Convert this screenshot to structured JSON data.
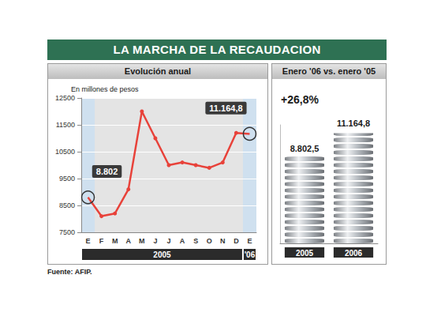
{
  "title": "LA MARCHA DE LA RECAUDACION",
  "source": "Fuente: AFIP.",
  "chart_data": [
    {
      "type": "line",
      "title": "Evolución anual",
      "ylabel": "En millones de pesos",
      "categories": [
        "E",
        "F",
        "M",
        "A",
        "M",
        "J",
        "J",
        "A",
        "S",
        "O",
        "N",
        "D",
        "E"
      ],
      "x_groups": [
        "2005",
        "2005",
        "2005",
        "2005",
        "2005",
        "2005",
        "2005",
        "2005",
        "2005",
        "2005",
        "2005",
        "2005",
        "'06"
      ],
      "values": [
        8802,
        8100,
        8200,
        9100,
        12000,
        11000,
        10000,
        10100,
        10000,
        9900,
        10100,
        11200,
        11164.8
      ],
      "value_labels": [
        "8.802",
        null,
        null,
        null,
        null,
        null,
        null,
        null,
        null,
        null,
        null,
        null,
        "11.164,8"
      ],
      "color": "#e8423a",
      "marker": "circle",
      "ylim": [
        7500,
        12500
      ],
      "yticks": [
        7500,
        8500,
        9500,
        10500,
        11500,
        12500
      ],
      "grid": true
    },
    {
      "type": "pictorialBar",
      "title": "Enero '06 vs. enero '05",
      "annotation": "+26,8%",
      "categories": [
        "2005",
        "2006"
      ],
      "values": [
        8802.5,
        11164.8
      ],
      "value_labels": [
        "8.802,5",
        "11.164,8"
      ],
      "color": "#b9bec3",
      "ylim": [
        0,
        12000
      ],
      "tick_labels": "x"
    }
  ]
}
